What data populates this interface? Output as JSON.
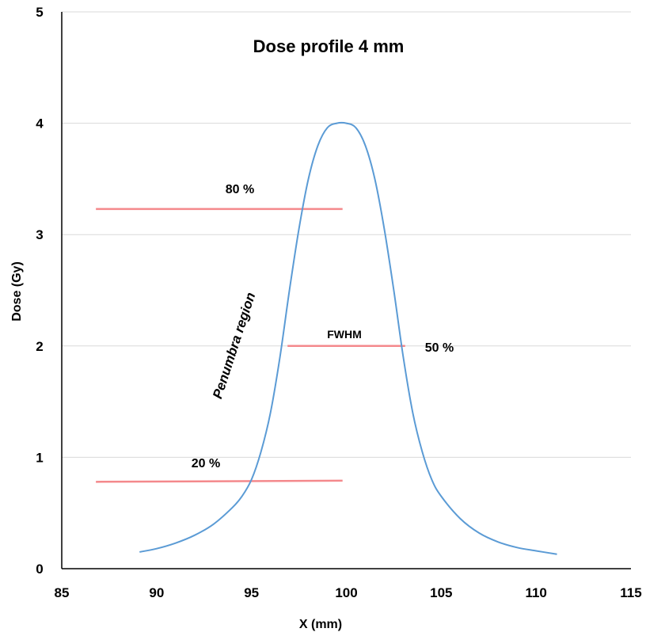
{
  "chart_data": {
    "type": "line",
    "title": "Dose profile 4 mm",
    "xlabel": "X (mm)",
    "ylabel": "Dose (Gy)",
    "xlim": [
      85,
      115
    ],
    "ylim": [
      0,
      5
    ],
    "x_ticks": [
      "85",
      "90",
      "95",
      "100",
      "105",
      "110",
      "115"
    ],
    "y_ticks": [
      "0",
      "1",
      "2",
      "3",
      "4",
      "5"
    ],
    "grid": "horizontal",
    "series": [
      {
        "color": "#5b9bd5",
        "x": [
          89.1,
          90,
          91,
          92,
          93,
          94,
          94.5,
          95,
          95.5,
          96,
          96.5,
          97,
          97.5,
          98,
          98.5,
          99,
          99.5,
          100,
          100.5,
          101,
          101.5,
          102,
          102.5,
          103,
          103.5,
          104,
          104.5,
          105,
          106,
          107,
          108,
          109,
          110,
          111.1
        ],
        "y": [
          0.15,
          0.18,
          0.23,
          0.3,
          0.4,
          0.55,
          0.65,
          0.8,
          1.05,
          1.4,
          1.9,
          2.5,
          3.05,
          3.5,
          3.8,
          3.96,
          4.0,
          4.0,
          3.96,
          3.8,
          3.5,
          3.05,
          2.5,
          1.9,
          1.4,
          1.05,
          0.8,
          0.65,
          0.45,
          0.32,
          0.24,
          0.19,
          0.16,
          0.13
        ]
      }
    ],
    "reference_lines": [
      {
        "label": "80 %",
        "color": "#f4898c",
        "x": [
          86.8,
          99.8
        ],
        "y": [
          3.23,
          3.23
        ]
      },
      {
        "label": "FWHM",
        "side_label": "50 %",
        "color": "#f4898c",
        "x": [
          96.9,
          103.1
        ],
        "y": [
          2.0,
          2.0
        ]
      },
      {
        "label": "20 %",
        "color": "#f4898c",
        "x": [
          86.8,
          99.8
        ],
        "y": [
          0.78,
          0.79
        ]
      }
    ],
    "annotations": [
      "Penumbra region"
    ]
  }
}
